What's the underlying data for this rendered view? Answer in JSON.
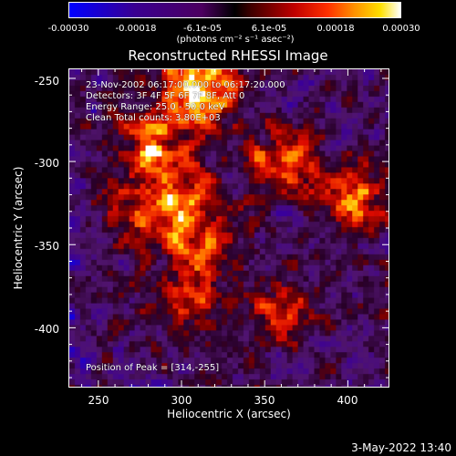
{
  "colorbar": {
    "tick_labels": [
      "-0.00030",
      "-0.00018",
      "-6.1e-05",
      "6.1e-05",
      "0.00018",
      "0.00030"
    ],
    "unit_label": "(photons cm⁻² s⁻¹ asec⁻²)",
    "colormap": [
      "#0000ff",
      "#4c0080",
      "#000000",
      "#ff0000",
      "#ff8000",
      "#ffff00",
      "#ffffff"
    ]
  },
  "overlay": {
    "time_range": "23-Nov-2002 06:17:00.000 to 06:17:20.000",
    "detectors": "Detectors: 3F 4F 5F 6F 7F 8F, Att 0",
    "energy_range": "Energy Range: 25.0 - 50.0 keV",
    "clean_counts": "Clean     Total counts: 3.80E+03",
    "peak_position": "Position of Peak = [314,-255]"
  },
  "footer": {
    "timestamp": "3-May-2022 13:40"
  },
  "chart_data": {
    "type": "heatmap",
    "title": "Reconstructed RHESSI Image",
    "xlabel": "Heliocentric X (arcsec)",
    "ylabel": "Heliocentric Y (arcsec)",
    "xlim": [
      232,
      425
    ],
    "ylim": [
      -436,
      -244
    ],
    "xticks": [
      250,
      300,
      350,
      400
    ],
    "yticks": [
      -250,
      -300,
      -350,
      -400
    ],
    "value_range": [
      -0.0003,
      0.0003
    ],
    "peak": [
      314,
      -255
    ],
    "note_regions": [
      {
        "x": 300,
        "y": -325,
        "level": "bright"
      },
      {
        "x": 360,
        "y": -300,
        "level": "bright"
      },
      {
        "x": 405,
        "y": -320,
        "level": "bright"
      },
      {
        "x": 280,
        "y": -290,
        "level": "bright"
      },
      {
        "x": 310,
        "y": -255,
        "level": "peak"
      },
      {
        "x": 300,
        "y": -385,
        "level": "medium"
      },
      {
        "x": 270,
        "y": -335,
        "level": "medium"
      },
      {
        "x": 360,
        "y": -395,
        "level": "medium"
      },
      {
        "x": 310,
        "y": -355,
        "level": "medium"
      }
    ]
  }
}
